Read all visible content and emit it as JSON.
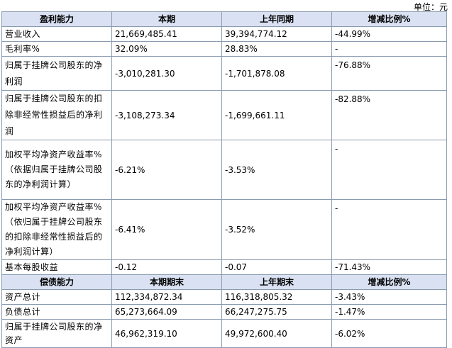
{
  "unit_label": "单位：元",
  "section1": {
    "headers": [
      "盈利能力",
      "本期",
      "上年同期",
      "增减比例%"
    ],
    "rows": [
      {
        "label": "营业收入",
        "current": "21,669,485.41",
        "prior": "39,394,774.12",
        "change": "-44.99%"
      },
      {
        "label": "毛利率%",
        "current": "32.09%",
        "prior": "28.83%",
        "change": "-"
      },
      {
        "label": "归属于挂牌公司股东的净利润",
        "current": "-3,010,281.30",
        "prior": "-1,701,878.08",
        "change": "-76.88%"
      },
      {
        "label": "归属于挂牌公司股东的扣除非经常性损益后的净利润",
        "current": "-3,108,273.34",
        "prior": "-1,699,661.11",
        "change": "-82.88%"
      },
      {
        "label": "加权平均净资产收益率%（依据归属于挂牌公司股东的净利润计算）",
        "current": "-6.21%",
        "prior": "-3.53%",
        "change": "-"
      },
      {
        "label": "加权平均净资产收益率%（依归属于挂牌公司股东的扣除非经常性损益后的净利润计算）",
        "current": "-6.41%",
        "prior": "-3.52%",
        "change": "-"
      },
      {
        "label": "基本每股收益",
        "current": "-0.12",
        "prior": "-0.07",
        "change": "-71.43%"
      }
    ]
  },
  "section2": {
    "headers": [
      "偿债能力",
      "本期期末",
      "上年期末",
      "增减比例%"
    ],
    "rows": [
      {
        "label": "资产总计",
        "current": "112,334,872.34",
        "prior": "116,318,805.32",
        "change": "-3.43%"
      },
      {
        "label": "负债总计",
        "current": "65,273,664.09",
        "prior": "66,247,275.75",
        "change": "-1.47%"
      },
      {
        "label": "归属于挂牌公司股东的净资产",
        "current": "46,962,319.10",
        "prior": "49,972,600.40",
        "change": "-6.02%"
      }
    ]
  }
}
